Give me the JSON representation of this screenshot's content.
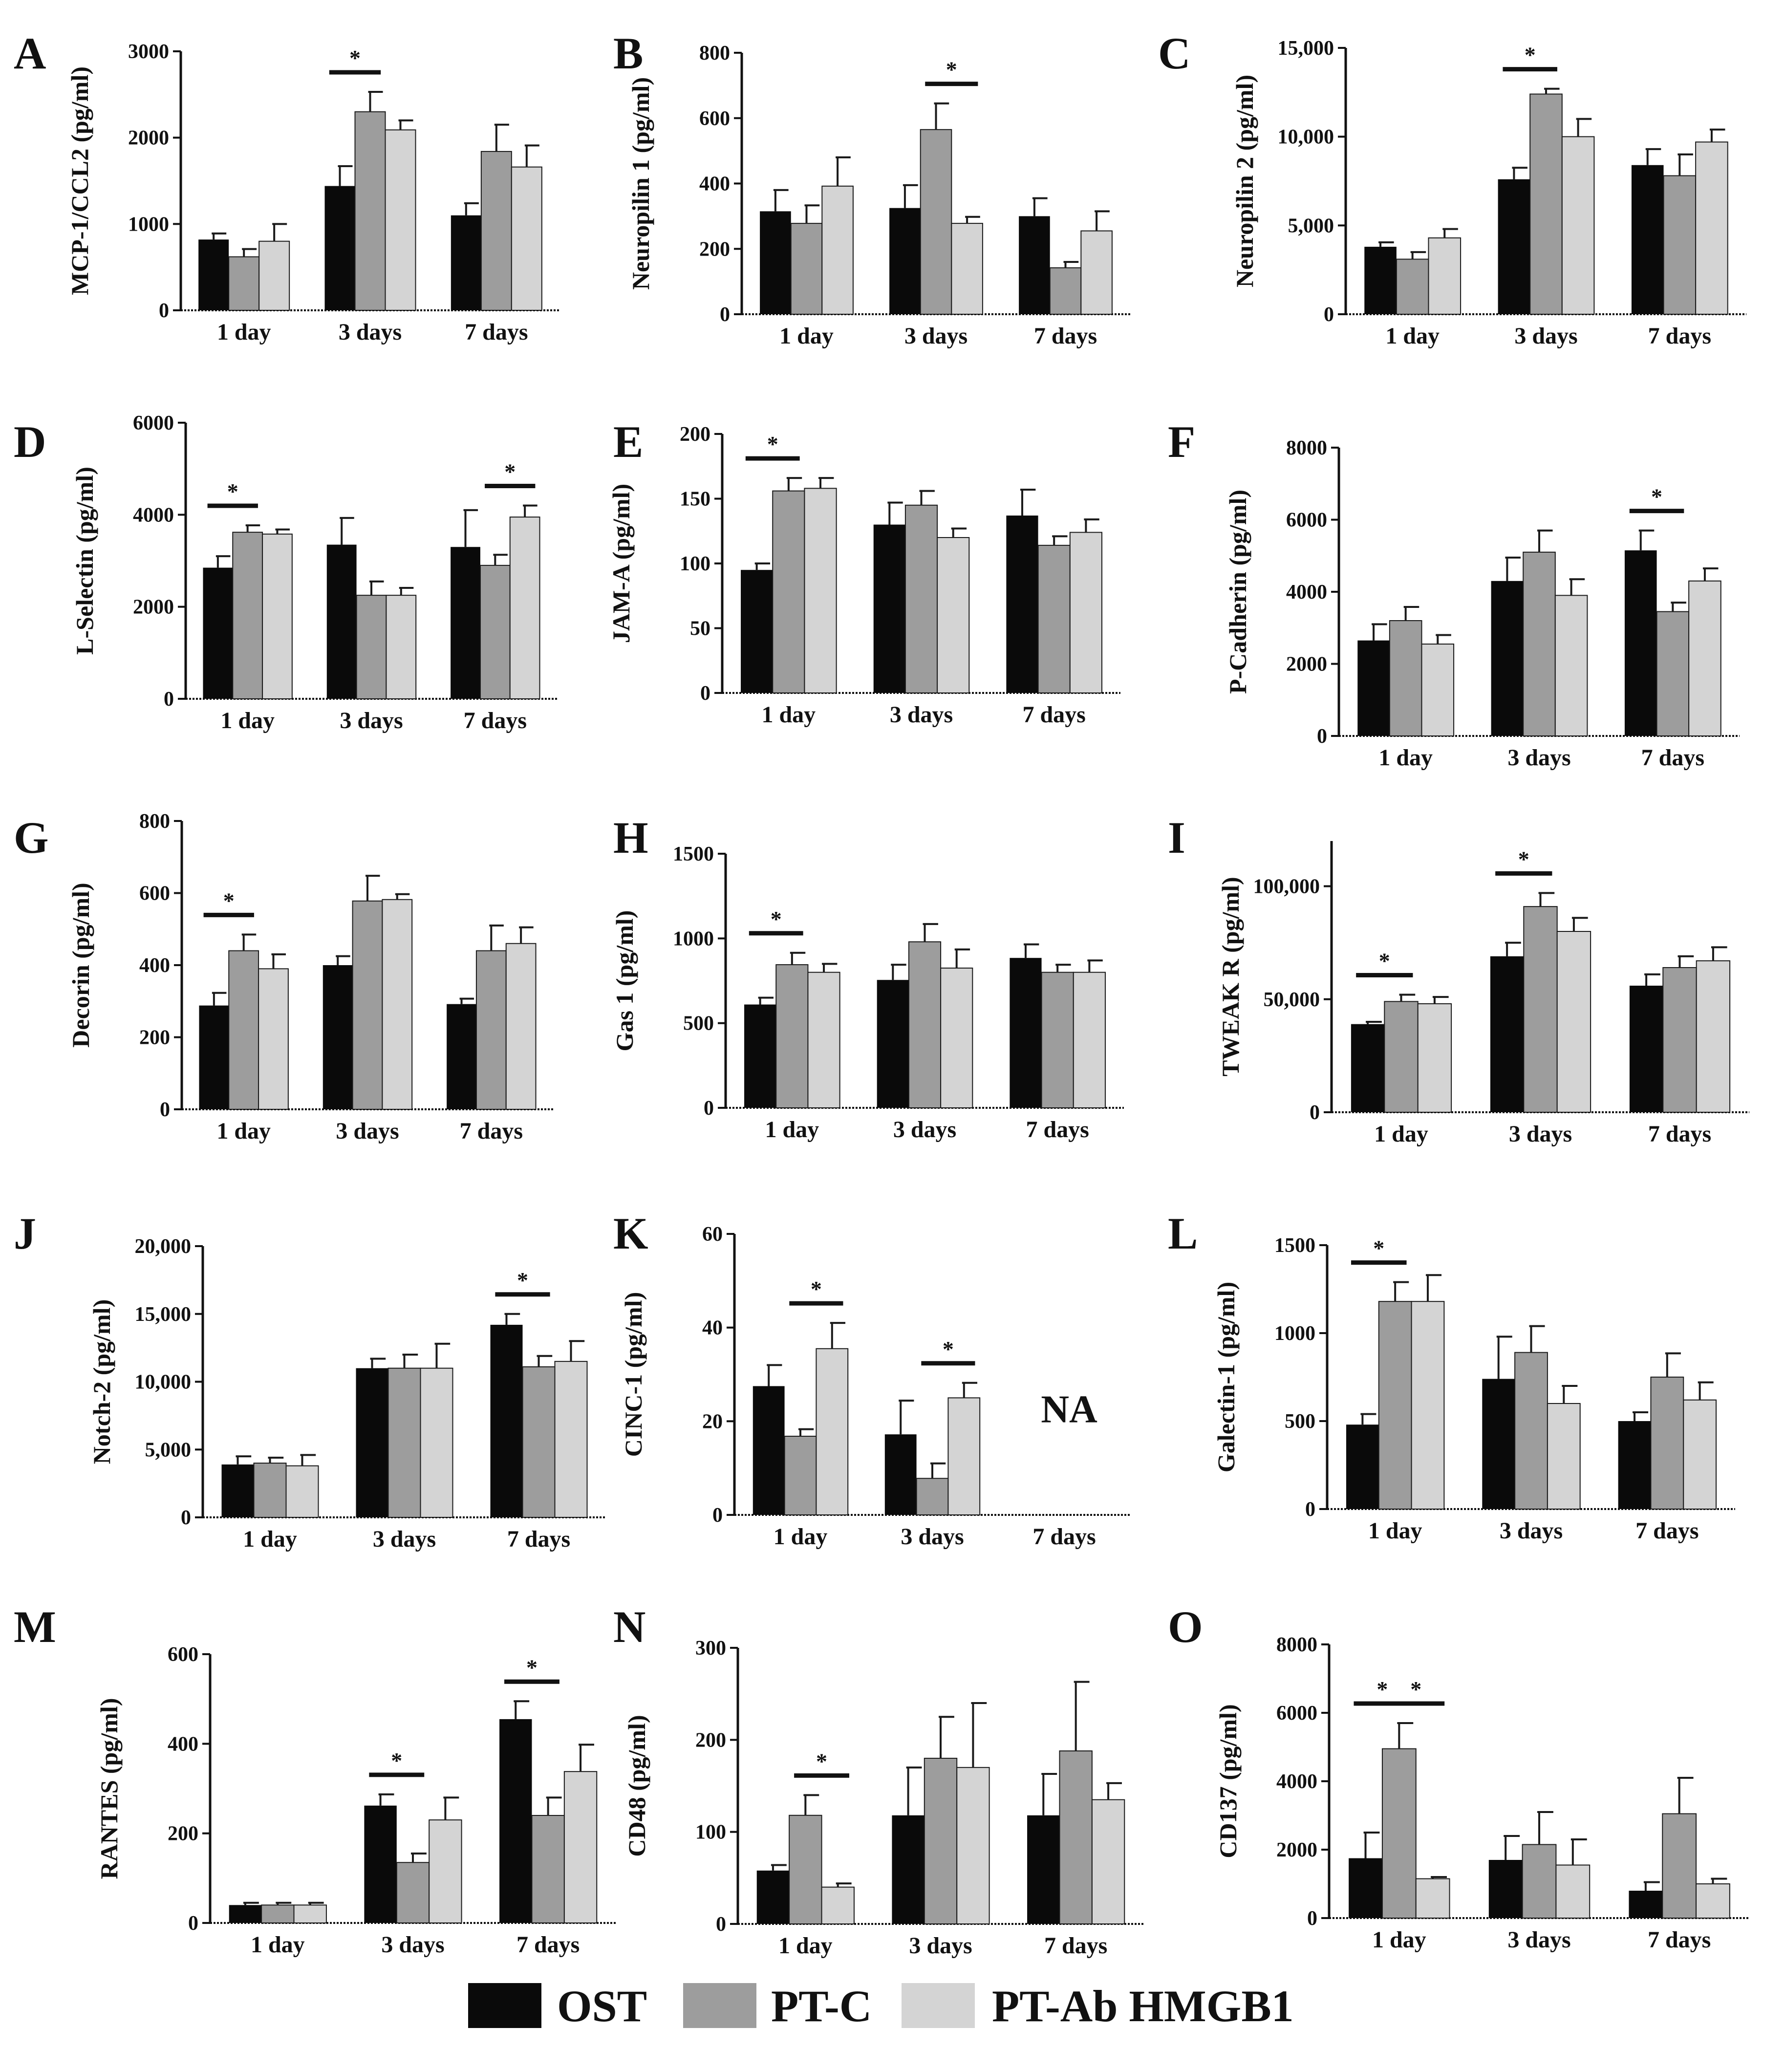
{
  "colors": {
    "OST": "#0a0a0a",
    "PT-C": "#9d9d9d",
    "PT-Ab HMGB1": "#d4d4d4",
    "axis": "#111111"
  },
  "legend": {
    "items": [
      "OST",
      "PT-C",
      "PT-Ab HMGB1"
    ]
  },
  "chart_data": [
    {
      "letter": "A",
      "type": "bar",
      "ylabel": "MCP-1/CCL2 (pg/ml)",
      "categories": [
        "1 day",
        "3 days",
        "7 days"
      ],
      "ylim": [
        0,
        3000
      ],
      "yticks": [
        "0",
        "1000",
        "2000",
        "3000"
      ],
      "series": [
        {
          "name": "OST",
          "values": [
            820,
            1440,
            1100
          ],
          "errors": [
            70,
            230,
            140
          ]
        },
        {
          "name": "PT-C",
          "values": [
            620,
            2300,
            1840
          ],
          "errors": [
            90,
            230,
            310
          ]
        },
        {
          "name": "PT-Ab HMGB1",
          "values": [
            800,
            2090,
            1660
          ],
          "errors": [
            200,
            110,
            250
          ]
        }
      ],
      "significance": [
        {
          "group": 1,
          "from": 0,
          "to": 1,
          "label": "*"
        }
      ]
    },
    {
      "letter": "B",
      "type": "bar",
      "ylabel": "Neuropilin 1 (pg/ml)",
      "categories": [
        "1 day",
        "3 days",
        "7 days"
      ],
      "ylim": [
        0,
        800
      ],
      "yticks": [
        "0",
        "200",
        "400",
        "600",
        "800"
      ],
      "series": [
        {
          "name": "OST",
          "values": [
            315,
            325,
            300
          ],
          "errors": [
            65,
            70,
            55
          ]
        },
        {
          "name": "PT-C",
          "values": [
            278,
            565,
            142
          ],
          "errors": [
            55,
            80,
            18
          ]
        },
        {
          "name": "PT-Ab HMGB1",
          "values": [
            392,
            278,
            255
          ],
          "errors": [
            88,
            20,
            60
          ]
        }
      ],
      "significance": [
        {
          "group": 1,
          "from": 1,
          "to": 2,
          "label": "*"
        }
      ]
    },
    {
      "letter": "C",
      "type": "bar",
      "ylabel": "Neuropilin 2 (pg/ml)",
      "categories": [
        "1 day",
        "3 days",
        "7 days"
      ],
      "ylim": [
        0,
        15000
      ],
      "yticks": [
        "0",
        "5,000",
        "10,000",
        "15,000"
      ],
      "series": [
        {
          "name": "OST",
          "values": [
            3800,
            7600,
            8400
          ],
          "errors": [
            250,
            650,
            900
          ]
        },
        {
          "name": "PT-C",
          "values": [
            3100,
            12400,
            7800
          ],
          "errors": [
            400,
            300,
            1200
          ]
        },
        {
          "name": "PT-Ab HMGB1",
          "values": [
            4300,
            10000,
            9700
          ],
          "errors": [
            500,
            1000,
            700
          ]
        }
      ],
      "significance": [
        {
          "group": 1,
          "from": 0,
          "to": 1,
          "label": "*"
        }
      ]
    },
    {
      "letter": "D",
      "type": "bar",
      "ylabel": "L-Selectin (pg/ml)",
      "categories": [
        "1 day",
        "3 days",
        "7 days"
      ],
      "ylim": [
        0,
        6000
      ],
      "yticks": [
        "0",
        "2000",
        "4000",
        "6000"
      ],
      "series": [
        {
          "name": "OST",
          "values": [
            2850,
            3350,
            3300
          ],
          "errors": [
            250,
            580,
            800
          ]
        },
        {
          "name": "PT-C",
          "values": [
            3620,
            2250,
            2900
          ],
          "errors": [
            150,
            300,
            230
          ]
        },
        {
          "name": "PT-Ab HMGB1",
          "values": [
            3580,
            2250,
            3950
          ],
          "errors": [
            100,
            160,
            250
          ]
        }
      ],
      "significance": [
        {
          "group": 0,
          "from": 0,
          "to": 1,
          "label": "*"
        },
        {
          "group": 2,
          "from": 1,
          "to": 2,
          "label": "*"
        }
      ]
    },
    {
      "letter": "E",
      "type": "bar",
      "ylabel": "JAM-A (pg/ml)",
      "categories": [
        "1 day",
        "3 days",
        "7 days"
      ],
      "ylim": [
        0,
        200
      ],
      "yticks": [
        "0",
        "50",
        "100",
        "150",
        "200"
      ],
      "series": [
        {
          "name": "OST",
          "values": [
            95,
            130,
            137
          ],
          "errors": [
            5,
            17,
            20
          ]
        },
        {
          "name": "PT-C",
          "values": [
            156,
            145,
            114
          ],
          "errors": [
            10,
            11,
            7
          ]
        },
        {
          "name": "PT-Ab HMGB1",
          "values": [
            158,
            120,
            124
          ],
          "errors": [
            8,
            7,
            10
          ]
        }
      ],
      "significance": [
        {
          "group": 0,
          "from": 0,
          "to": 1,
          "label": "*"
        }
      ]
    },
    {
      "letter": "F",
      "type": "bar",
      "ylabel": "P-Cadherin (pg/ml)",
      "categories": [
        "1 day",
        "3 days",
        "7 days"
      ],
      "ylim": [
        0,
        8000
      ],
      "yticks": [
        "0",
        "2000",
        "4000",
        "6000",
        "8000"
      ],
      "series": [
        {
          "name": "OST",
          "values": [
            2650,
            4300,
            5150
          ],
          "errors": [
            450,
            650,
            550
          ]
        },
        {
          "name": "PT-C",
          "values": [
            3200,
            5100,
            3450
          ],
          "errors": [
            380,
            600,
            250
          ]
        },
        {
          "name": "PT-Ab HMGB1",
          "values": [
            2550,
            3900,
            4300
          ],
          "errors": [
            250,
            450,
            350
          ]
        }
      ],
      "significance": [
        {
          "group": 2,
          "from": 0,
          "to": 1,
          "label": "*"
        }
      ]
    },
    {
      "letter": "G",
      "type": "bar",
      "ylabel": "Decorin (pg/ml)",
      "categories": [
        "1 day",
        "3 days",
        "7 days"
      ],
      "ylim": [
        0,
        800
      ],
      "yticks": [
        "0",
        "200",
        "400",
        "600",
        "800"
      ],
      "series": [
        {
          "name": "OST",
          "values": [
            288,
            400,
            292
          ],
          "errors": [
            35,
            25,
            15
          ]
        },
        {
          "name": "PT-C",
          "values": [
            440,
            578,
            440
          ],
          "errors": [
            45,
            70,
            70
          ]
        },
        {
          "name": "PT-Ab HMGB1",
          "values": [
            390,
            582,
            460
          ],
          "errors": [
            40,
            15,
            45
          ]
        }
      ],
      "significance": [
        {
          "group": 0,
          "from": 0,
          "to": 1,
          "label": "*"
        }
      ]
    },
    {
      "letter": "H",
      "type": "bar",
      "ylabel": "Gas 1 (pg/ml)",
      "categories": [
        "1 day",
        "3 days",
        "7 days"
      ],
      "ylim": [
        0,
        1500
      ],
      "yticks": [
        "0",
        "500",
        "1000",
        "1500"
      ],
      "series": [
        {
          "name": "OST",
          "values": [
            610,
            755,
            885
          ],
          "errors": [
            40,
            90,
            80
          ]
        },
        {
          "name": "PT-C",
          "values": [
            845,
            980,
            800
          ],
          "errors": [
            70,
            105,
            45
          ]
        },
        {
          "name": "PT-Ab HMGB1",
          "values": [
            800,
            825,
            800
          ],
          "errors": [
            50,
            110,
            70
          ]
        }
      ],
      "significance": [
        {
          "group": 0,
          "from": 0,
          "to": 1,
          "label": "*"
        }
      ]
    },
    {
      "letter": "I",
      "type": "bar",
      "ylabel": "TWEAK R (pg/ml)",
      "categories": [
        "1 day",
        "3 days",
        "7 days"
      ],
      "ylim": [
        0,
        120000
      ],
      "yticks": [
        "0",
        "50,000",
        "100,000"
      ],
      "series": [
        {
          "name": "OST",
          "values": [
            39000,
            69000,
            56000
          ],
          "errors": [
            1000,
            6000,
            5000
          ]
        },
        {
          "name": "PT-C",
          "values": [
            49000,
            91000,
            64000
          ],
          "errors": [
            3000,
            6000,
            5000
          ]
        },
        {
          "name": "PT-Ab HMGB1",
          "values": [
            48000,
            80000,
            67000
          ],
          "errors": [
            3000,
            6000,
            6000
          ]
        }
      ],
      "significance": [
        {
          "group": 0,
          "from": 0,
          "to": 1,
          "label": "*"
        },
        {
          "group": 1,
          "from": 0,
          "to": 1,
          "label": "*"
        }
      ]
    },
    {
      "letter": "J",
      "type": "bar",
      "ylabel": "Notch-2 (pg/ml)",
      "categories": [
        "1 day",
        "3 days",
        "7 days"
      ],
      "ylim": [
        0,
        20000
      ],
      "yticks": [
        "0",
        "5,000",
        "10,000",
        "15,000",
        "20,000"
      ],
      "series": [
        {
          "name": "OST",
          "values": [
            3900,
            11000,
            14200
          ],
          "errors": [
            600,
            700,
            800
          ]
        },
        {
          "name": "PT-C",
          "values": [
            4000,
            11000,
            11100
          ],
          "errors": [
            400,
            1000,
            800
          ]
        },
        {
          "name": "PT-Ab HMGB1",
          "values": [
            3800,
            11000,
            11500
          ],
          "errors": [
            800,
            1800,
            1500
          ]
        }
      ],
      "significance": [
        {
          "group": 2,
          "from": 0,
          "to": 1,
          "label": "*"
        }
      ]
    },
    {
      "letter": "K",
      "type": "bar",
      "ylabel": "CINC-1 (pg/ml)",
      "categories": [
        "1 day",
        "3 days",
        "7 days"
      ],
      "ylim": [
        0,
        60
      ],
      "yticks": [
        "0",
        "20",
        "40",
        "60"
      ],
      "series": [
        {
          "name": "OST",
          "values": [
            27.5,
            17.2,
            null
          ],
          "errors": [
            4.5,
            7.2,
            null
          ]
        },
        {
          "name": "PT-C",
          "values": [
            16.8,
            7.8,
            null
          ],
          "errors": [
            1.5,
            3.2,
            null
          ]
        },
        {
          "name": "PT-Ab HMGB1",
          "values": [
            35.5,
            25,
            null
          ],
          "errors": [
            5.5,
            3.2,
            null
          ]
        }
      ],
      "significance": [
        {
          "group": 0,
          "from": 1,
          "to": 2,
          "label": "*"
        },
        {
          "group": 1,
          "from": 1,
          "to": 2,
          "label": "*"
        }
      ],
      "annotation": "NA"
    },
    {
      "letter": "L",
      "type": "bar",
      "ylabel": "Galectin-1 (pg/ml)",
      "categories": [
        "1 day",
        "3 days",
        "7 days"
      ],
      "ylim": [
        0,
        1500
      ],
      "yticks": [
        "0",
        "500",
        "1000",
        "1500"
      ],
      "series": [
        {
          "name": "OST",
          "values": [
            480,
            740,
            500
          ],
          "errors": [
            60,
            240,
            50
          ]
        },
        {
          "name": "PT-C",
          "values": [
            1180,
            890,
            750
          ],
          "errors": [
            110,
            150,
            135
          ]
        },
        {
          "name": "PT-Ab HMGB1",
          "values": [
            1180,
            600,
            620
          ],
          "errors": [
            150,
            100,
            100
          ]
        }
      ],
      "significance": [
        {
          "group": 0,
          "from": 0,
          "to": 1,
          "label": "*"
        }
      ]
    },
    {
      "letter": "M",
      "type": "bar",
      "ylabel": "RANTES (pg/ml)",
      "categories": [
        "1 day",
        "3 days",
        "7 days"
      ],
      "ylim": [
        0,
        600
      ],
      "yticks": [
        "0",
        "200",
        "400",
        "600"
      ],
      "series": [
        {
          "name": "OST",
          "values": [
            40,
            262,
            455
          ],
          "errors": [
            5,
            25,
            40
          ]
        },
        {
          "name": "PT-C",
          "values": [
            40,
            135,
            240
          ],
          "errors": [
            5,
            20,
            40
          ]
        },
        {
          "name": "PT-Ab HMGB1",
          "values": [
            40,
            230,
            338
          ],
          "errors": [
            5,
            50,
            60
          ]
        }
      ],
      "significance": [
        {
          "group": 1,
          "from": 0,
          "to": 1,
          "label": "*"
        },
        {
          "group": 2,
          "from": 0,
          "to": 1,
          "label": "*"
        }
      ]
    },
    {
      "letter": "N",
      "type": "bar",
      "ylabel": "CD48 (pg/ml)",
      "categories": [
        "1 day",
        "3 days",
        "7 days"
      ],
      "ylim": [
        0,
        300
      ],
      "yticks": [
        "0",
        "100",
        "200",
        "300"
      ],
      "series": [
        {
          "name": "OST",
          "values": [
            58,
            118,
            118
          ],
          "errors": [
            6,
            52,
            45
          ]
        },
        {
          "name": "PT-C",
          "values": [
            118,
            180,
            188
          ],
          "errors": [
            22,
            45,
            75
          ]
        },
        {
          "name": "PT-Ab HMGB1",
          "values": [
            40,
            170,
            135
          ],
          "errors": [
            4,
            70,
            18
          ]
        }
      ],
      "significance": [
        {
          "group": 0,
          "from": 1,
          "to": 2,
          "label": "*"
        }
      ]
    },
    {
      "letter": "O",
      "type": "bar",
      "ylabel": "CD137 (pg/ml)",
      "categories": [
        "1 day",
        "3 days",
        "7 days"
      ],
      "ylim": [
        0,
        8000
      ],
      "yticks": [
        "0",
        "2000",
        "4000",
        "6000",
        "8000"
      ],
      "series": [
        {
          "name": "OST",
          "values": [
            1750,
            1700,
            800
          ],
          "errors": [
            750,
            700,
            250
          ]
        },
        {
          "name": "PT-C",
          "values": [
            4950,
            2150,
            3050
          ],
          "errors": [
            750,
            950,
            1050
          ]
        },
        {
          "name": "PT-Ab HMGB1",
          "values": [
            1150,
            1550,
            1000
          ],
          "errors": [
            50,
            750,
            150
          ]
        }
      ],
      "significance": [
        {
          "group": 0,
          "from": 0,
          "to": 1,
          "label": "*"
        },
        {
          "group": 0,
          "from": 1,
          "to": 2,
          "label": "*"
        }
      ]
    }
  ]
}
